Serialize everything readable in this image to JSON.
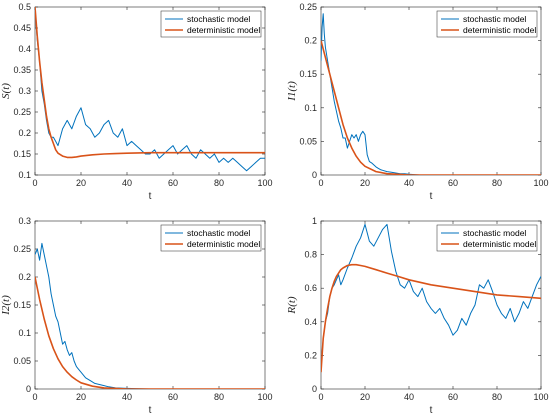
{
  "colors": {
    "stochastic": "#0072BD",
    "deterministic": "#D95319",
    "axis": "#262626"
  },
  "chart_data": [
    {
      "type": "line",
      "xlabel": "t",
      "ylabel": "S(t)",
      "xlim": [
        0,
        100
      ],
      "ylim": [
        0.1,
        0.5
      ],
      "xticks": [
        "0",
        "20",
        "40",
        "60",
        "80",
        "100"
      ],
      "yticks": [
        "0.1",
        "0.15",
        "0.2",
        "0.25",
        "0.3",
        "0.35",
        "0.4",
        "0.45",
        "0.5"
      ],
      "legend": {
        "position": "top-right",
        "entries": [
          "stochastic model",
          "deterministic model"
        ]
      },
      "series": [
        {
          "name": "stochastic model",
          "x": [
            0,
            1,
            2,
            3,
            4,
            5,
            6,
            7,
            8,
            9,
            10,
            12,
            14,
            16,
            18,
            20,
            22,
            24,
            26,
            28,
            30,
            32,
            34,
            36,
            38,
            40,
            42,
            44,
            46,
            48,
            50,
            52,
            54,
            56,
            58,
            60,
            62,
            64,
            66,
            68,
            70,
            72,
            74,
            76,
            78,
            80,
            82,
            84,
            86,
            88,
            90,
            92,
            94,
            96,
            98,
            100
          ],
          "y": [
            0.49,
            0.42,
            0.37,
            0.3,
            0.27,
            0.23,
            0.2,
            0.19,
            0.19,
            0.18,
            0.17,
            0.21,
            0.23,
            0.21,
            0.24,
            0.26,
            0.22,
            0.21,
            0.19,
            0.2,
            0.22,
            0.23,
            0.2,
            0.19,
            0.21,
            0.17,
            0.18,
            0.17,
            0.16,
            0.15,
            0.15,
            0.16,
            0.14,
            0.15,
            0.16,
            0.17,
            0.15,
            0.16,
            0.17,
            0.15,
            0.14,
            0.16,
            0.15,
            0.14,
            0.15,
            0.13,
            0.14,
            0.13,
            0.14,
            0.13,
            0.12,
            0.11,
            0.12,
            0.13,
            0.14,
            0.14
          ]
        },
        {
          "name": "deterministic model",
          "x": [
            0,
            1,
            2,
            3,
            4,
            5,
            6,
            7,
            8,
            9,
            10,
            12,
            14,
            16,
            18,
            20,
            25,
            30,
            35,
            40,
            50,
            60,
            70,
            80,
            90,
            100
          ],
          "y": [
            0.5,
            0.43,
            0.37,
            0.32,
            0.28,
            0.24,
            0.21,
            0.19,
            0.175,
            0.16,
            0.152,
            0.145,
            0.142,
            0.142,
            0.143,
            0.145,
            0.148,
            0.15,
            0.151,
            0.152,
            0.153,
            0.153,
            0.153,
            0.153,
            0.153,
            0.153
          ]
        }
      ]
    },
    {
      "type": "line",
      "xlabel": "t",
      "ylabel": "I1(t)",
      "xlim": [
        0,
        100
      ],
      "ylim": [
        0,
        0.25
      ],
      "xticks": [
        "0",
        "20",
        "40",
        "60",
        "80",
        "100"
      ],
      "yticks": [
        "0",
        "0.05",
        "0.1",
        "0.15",
        "0.2",
        "0.25"
      ],
      "legend": {
        "position": "top-right",
        "entries": [
          "stochastic model",
          "deterministic model"
        ]
      },
      "series": [
        {
          "name": "stochastic model",
          "x": [
            0,
            0.5,
            1,
            1.5,
            2,
            3,
            4,
            5,
            6,
            7,
            8,
            9,
            10,
            11,
            12,
            13,
            14,
            15,
            16,
            17,
            18,
            19,
            20,
            21,
            22,
            23,
            24,
            25,
            26,
            27,
            28,
            30,
            32,
            34,
            36,
            38,
            40,
            45,
            50,
            60,
            70,
            80,
            90,
            100
          ],
          "y": [
            0.17,
            0.22,
            0.24,
            0.21,
            0.19,
            0.17,
            0.15,
            0.13,
            0.11,
            0.095,
            0.08,
            0.07,
            0.055,
            0.055,
            0.04,
            0.05,
            0.06,
            0.055,
            0.06,
            0.05,
            0.06,
            0.065,
            0.06,
            0.03,
            0.02,
            0.018,
            0.015,
            0.012,
            0.01,
            0.008,
            0.007,
            0.005,
            0.004,
            0.003,
            0.002,
            0.002,
            0.001,
            0.0,
            0.0,
            0.0,
            0.0,
            0.0,
            0.0,
            0.0
          ]
        },
        {
          "name": "deterministic model",
          "x": [
            0,
            2,
            4,
            6,
            8,
            10,
            12,
            14,
            16,
            18,
            20,
            25,
            30,
            35,
            40,
            50,
            60,
            70,
            80,
            90,
            100
          ],
          "y": [
            0.2,
            0.175,
            0.15,
            0.125,
            0.1,
            0.075,
            0.055,
            0.04,
            0.028,
            0.019,
            0.013,
            0.005,
            0.002,
            0.001,
            0.0,
            0.0,
            0.0,
            0.0,
            0.0,
            0.0,
            0.0
          ]
        }
      ]
    },
    {
      "type": "line",
      "xlabel": "t",
      "ylabel": "I2(t)",
      "xlim": [
        0,
        100
      ],
      "ylim": [
        0,
        0.3
      ],
      "xticks": [
        "0",
        "20",
        "40",
        "60",
        "80",
        "100"
      ],
      "yticks": [
        "0",
        "0.05",
        "0.1",
        "0.15",
        "0.2",
        "0.25",
        "0.3"
      ],
      "legend": {
        "position": "top-right",
        "entries": [
          "stochastic model",
          "deterministic model"
        ]
      },
      "series": [
        {
          "name": "stochastic model",
          "x": [
            0,
            1,
            2,
            3,
            4,
            5,
            6,
            7,
            8,
            9,
            10,
            11,
            12,
            13,
            14,
            15,
            16,
            17,
            18,
            19,
            20,
            22,
            24,
            26,
            28,
            30,
            32,
            35,
            40,
            50,
            60,
            70,
            80,
            90,
            100
          ],
          "y": [
            0.24,
            0.25,
            0.23,
            0.26,
            0.24,
            0.22,
            0.2,
            0.17,
            0.15,
            0.13,
            0.12,
            0.1,
            0.08,
            0.085,
            0.07,
            0.06,
            0.065,
            0.05,
            0.04,
            0.035,
            0.03,
            0.02,
            0.015,
            0.01,
            0.008,
            0.006,
            0.004,
            0.002,
            0.001,
            0.0,
            0.0,
            0.0,
            0.0,
            0.0,
            0.0
          ]
        },
        {
          "name": "deterministic model",
          "x": [
            0,
            2,
            4,
            6,
            8,
            10,
            12,
            14,
            16,
            18,
            20,
            25,
            30,
            35,
            40,
            50,
            60,
            70,
            80,
            90,
            100
          ],
          "y": [
            0.2,
            0.16,
            0.125,
            0.095,
            0.072,
            0.054,
            0.04,
            0.03,
            0.022,
            0.016,
            0.011,
            0.005,
            0.002,
            0.001,
            0.0,
            0.0,
            0.0,
            0.0,
            0.0,
            0.0,
            0.0
          ]
        }
      ]
    },
    {
      "type": "line",
      "xlabel": "t",
      "ylabel": "R(t)",
      "xlim": [
        0,
        100
      ],
      "ylim": [
        0,
        1
      ],
      "xticks": [
        "0",
        "20",
        "40",
        "60",
        "80",
        "100"
      ],
      "yticks": [
        "0",
        "0.2",
        "0.4",
        "0.6",
        "0.8",
        "1"
      ],
      "legend": {
        "position": "top-right",
        "entries": [
          "stochastic model",
          "deterministic model"
        ]
      },
      "series": [
        {
          "name": "stochastic model",
          "x": [
            0,
            1,
            2,
            3,
            4,
            5,
            6,
            7,
            8,
            9,
            10,
            12,
            14,
            16,
            18,
            20,
            22,
            24,
            26,
            28,
            30,
            32,
            34,
            36,
            38,
            40,
            42,
            44,
            46,
            48,
            50,
            52,
            54,
            56,
            58,
            60,
            62,
            64,
            66,
            68,
            70,
            72,
            74,
            76,
            78,
            80,
            82,
            84,
            86,
            88,
            90,
            92,
            94,
            96,
            98,
            100
          ],
          "y": [
            0.12,
            0.3,
            0.4,
            0.45,
            0.55,
            0.6,
            0.62,
            0.65,
            0.68,
            0.62,
            0.65,
            0.72,
            0.78,
            0.85,
            0.9,
            0.98,
            0.88,
            0.85,
            0.9,
            0.95,
            0.98,
            0.82,
            0.7,
            0.62,
            0.6,
            0.65,
            0.58,
            0.55,
            0.6,
            0.52,
            0.48,
            0.45,
            0.48,
            0.42,
            0.38,
            0.32,
            0.35,
            0.42,
            0.38,
            0.45,
            0.5,
            0.62,
            0.6,
            0.65,
            0.58,
            0.5,
            0.45,
            0.42,
            0.48,
            0.4,
            0.45,
            0.52,
            0.48,
            0.55,
            0.62,
            0.67
          ]
        },
        {
          "name": "deterministic model",
          "x": [
            0,
            1,
            2,
            3,
            4,
            5,
            6,
            7,
            8,
            9,
            10,
            12,
            14,
            16,
            18,
            20,
            25,
            30,
            35,
            40,
            50,
            60,
            70,
            80,
            90,
            100
          ],
          "y": [
            0.1,
            0.3,
            0.4,
            0.48,
            0.55,
            0.6,
            0.64,
            0.67,
            0.69,
            0.71,
            0.72,
            0.735,
            0.74,
            0.74,
            0.735,
            0.73,
            0.71,
            0.69,
            0.67,
            0.65,
            0.62,
            0.6,
            0.58,
            0.56,
            0.55,
            0.54
          ]
        }
      ]
    }
  ]
}
